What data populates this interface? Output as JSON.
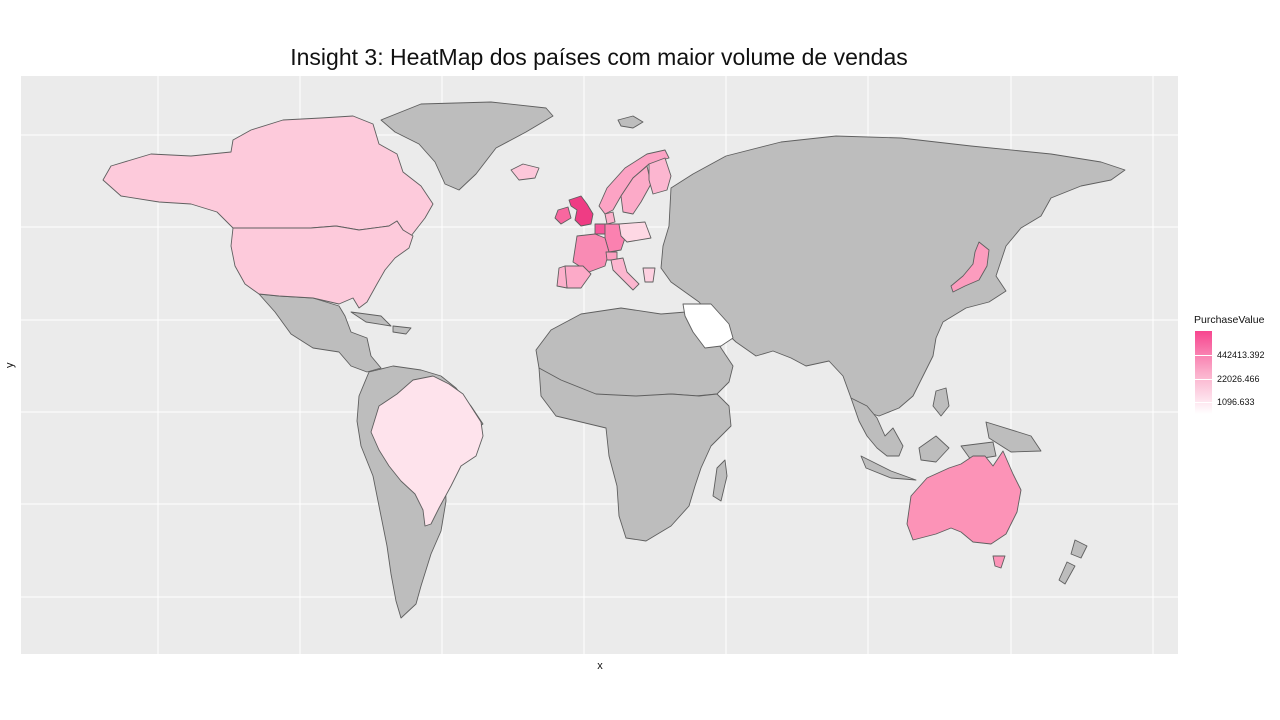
{
  "title": "Insight 3: HeatMap dos países com maior volume de vendas",
  "axes": {
    "xlabel": "x",
    "ylabel": "y"
  },
  "legend": {
    "title": "PurchaseValue",
    "labels": [
      "442413.392",
      "22026.466",
      "1096.633"
    ],
    "colors": {
      "high": "#f7468f",
      "mid": "#fbadca",
      "low": "#ffffff"
    }
  },
  "colors": {
    "panel": "#ebebeb",
    "grid": "#ffffff",
    "no_data": "#bdbdbd",
    "border": "#5f5f5f"
  },
  "chart_data": {
    "type": "heatmap",
    "subtype": "choropleth-world-map",
    "fill_variable": "PurchaseValue",
    "scale": "log",
    "grid": true,
    "legend_position": "right",
    "regions_with_data": [
      {
        "region": "United Kingdom",
        "color": "#ef3c84"
      },
      {
        "region": "Netherlands",
        "color": "#f6559a"
      },
      {
        "region": "Ireland",
        "color": "#f8679f"
      },
      {
        "region": "Germany",
        "color": "#fb81b0"
      },
      {
        "region": "France",
        "color": "#f98bb4"
      },
      {
        "region": "Australia",
        "color": "#fc93b7"
      },
      {
        "region": "Japan",
        "color": "#fc9cbe"
      },
      {
        "region": "Spain",
        "color": "#fcaac8"
      },
      {
        "region": "Switzerland",
        "color": "#fc9ec0"
      },
      {
        "region": "Norway",
        "color": "#fca3c4"
      },
      {
        "region": "Sweden",
        "color": "#fcaac8"
      },
      {
        "region": "Finland",
        "color": "#fcb6d0"
      },
      {
        "region": "Italy",
        "color": "#fcb6cf"
      },
      {
        "region": "Denmark",
        "color": "#fcb1cc"
      },
      {
        "region": "Portugal",
        "color": "#fcb0cb"
      },
      {
        "region": "Poland",
        "color": "#fed8e4"
      },
      {
        "region": "Iceland",
        "color": "#fdc7da"
      },
      {
        "region": "Canada",
        "color": "#fdcadb"
      },
      {
        "region": "United States",
        "color": "#fdcadb"
      },
      {
        "region": "Greece",
        "color": "#fdd0e0"
      },
      {
        "region": "Brazil",
        "color": "#fee3ec"
      },
      {
        "region": "Saudi Arabia",
        "color": "#ffffff"
      }
    ]
  }
}
